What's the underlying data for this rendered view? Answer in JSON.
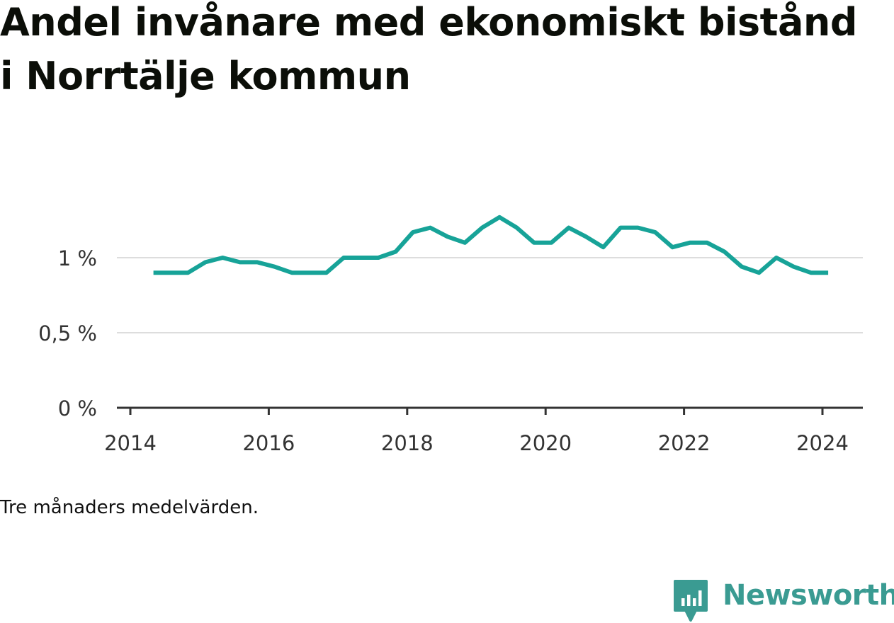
{
  "chart_data": {
    "type": "line",
    "title": "Andel invånare med ekonomiskt bistånd i Norrtälje kommun",
    "note": "Tre månaders medelvärden.",
    "x_ticks": [
      "2014",
      "2016",
      "2018",
      "2020",
      "2022",
      "2024"
    ],
    "y_ticks": [
      {
        "value": 0,
        "label": "0 %"
      },
      {
        "value": 0.5,
        "label": "0,5 %"
      },
      {
        "value": 1,
        "label": "1 %"
      }
    ],
    "ylim": [
      0,
      1.35
    ],
    "xlim": [
      2014.0,
      2024.6
    ],
    "grid": true,
    "line_color": "#17a398",
    "series": [
      {
        "unit": "%",
        "x": [
          "2014-05",
          "2014-08",
          "2014-11",
          "2015-02",
          "2015-05",
          "2015-08",
          "2015-11",
          "2016-02",
          "2016-05",
          "2016-08",
          "2016-11",
          "2017-02",
          "2017-05",
          "2017-08",
          "2017-11",
          "2018-02",
          "2018-05",
          "2018-08",
          "2018-11",
          "2019-02",
          "2019-05",
          "2019-08",
          "2019-11",
          "2020-02",
          "2020-05",
          "2020-08",
          "2020-11",
          "2021-02",
          "2021-05",
          "2021-08",
          "2021-11",
          "2022-02",
          "2022-05",
          "2022-08",
          "2022-11",
          "2023-02",
          "2023-05",
          "2023-08",
          "2023-11",
          "2024-02"
        ],
        "values": [
          0.9,
          0.9,
          0.9,
          0.97,
          1.0,
          0.97,
          0.97,
          0.94,
          0.9,
          0.9,
          0.9,
          1.0,
          1.0,
          1.0,
          1.04,
          1.17,
          1.2,
          1.14,
          1.1,
          1.2,
          1.27,
          1.2,
          1.1,
          1.1,
          1.2,
          1.14,
          1.07,
          1.2,
          1.2,
          1.17,
          1.07,
          1.1,
          1.1,
          1.04,
          0.94,
          0.9,
          1.0,
          0.94,
          0.9,
          0.9
        ]
      }
    ]
  },
  "brand": {
    "name": "Newsworthy",
    "icon": "newsworthy-logo-icon",
    "color": "#3a9b92"
  }
}
